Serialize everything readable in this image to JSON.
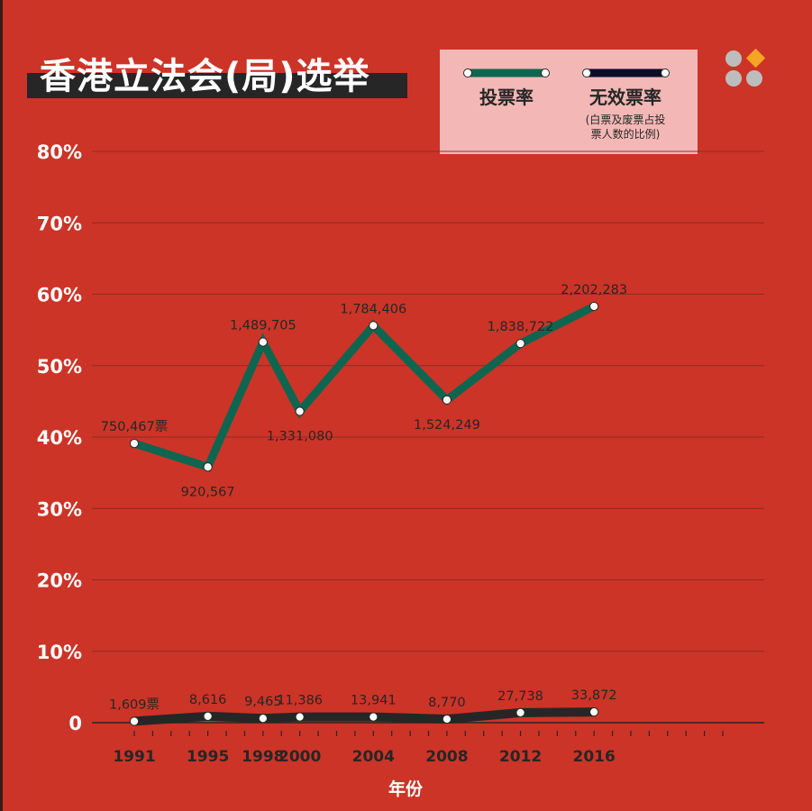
{
  "title": "香港立法会(局)选举",
  "legend": {
    "turnout": {
      "label": "投票率"
    },
    "invalid": {
      "label": "无效票率",
      "note_line1": "(白票及废票占投",
      "note_line2": "票人数的比例)"
    }
  },
  "colors": {
    "background": "#cc3427",
    "turnout_line": "#0f6650",
    "invalid_line": "#262626",
    "grid": "#8e2b22",
    "legend_bg": "#f3b8b5",
    "logo_gray": "#bdbdbd",
    "logo_orange": "#f4a623"
  },
  "logo_icon": "four-dots-logo-icon",
  "chart_data": {
    "type": "line",
    "xlabel": "年份",
    "ylabel": "",
    "ylim": [
      0,
      80
    ],
    "yticks": [
      "0",
      "10%",
      "20%",
      "30%",
      "40%",
      "50%",
      "60%",
      "70%",
      "80%"
    ],
    "ytick_values": [
      0,
      10,
      20,
      30,
      40,
      50,
      60,
      70,
      80
    ],
    "x": [
      1991,
      1995,
      1998,
      2000,
      2004,
      2008,
      2012,
      2016
    ],
    "xlim": [
      1991,
      2023
    ],
    "grid": true,
    "legend_position": "top-right",
    "series": [
      {
        "name": "投票率",
        "color": "#0f6650",
        "values": [
          39.1,
          35.8,
          53.3,
          43.6,
          55.6,
          45.2,
          53.1,
          58.3
        ],
        "labels": [
          "750,467票",
          "920,567",
          "1,489,705",
          "1,331,080",
          "1,784,406",
          "1,524,249",
          "1,838,722",
          "2,202,283"
        ],
        "label_side": [
          "above",
          "below",
          "above",
          "below",
          "above",
          "below",
          "above",
          "above"
        ]
      },
      {
        "name": "无效票率",
        "color": "#262626",
        "values": [
          0.2,
          0.9,
          0.6,
          0.8,
          0.8,
          0.5,
          1.4,
          1.5
        ],
        "labels": [
          "1,609票",
          "8,616",
          "9,465",
          "11,386",
          "13,941",
          "8,770",
          "27,738",
          "33,872"
        ],
        "label_side": [
          "above",
          "above",
          "above",
          "above",
          "above",
          "above",
          "above",
          "above"
        ]
      }
    ]
  }
}
